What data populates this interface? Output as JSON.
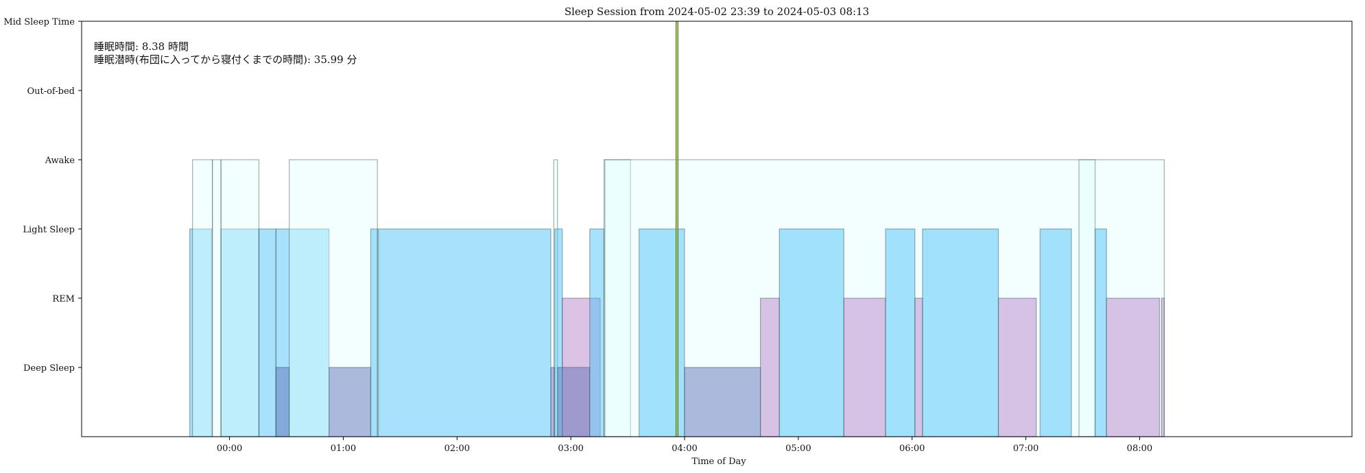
{
  "chart_data": {
    "type": "bar",
    "title": "Sleep Session from 2024-05-02 23:39 to 2024-05-03 08:13",
    "xlabel": "Time of Day",
    "ylabel": "",
    "grid": false,
    "x_unit": "minutes relative to 2024-05-03 00:00",
    "xlim": [
      -78,
      592
    ],
    "x_ticks": [
      {
        "value": 0,
        "label": "00:00"
      },
      {
        "value": 60,
        "label": "01:00"
      },
      {
        "value": 120,
        "label": "02:00"
      },
      {
        "value": 180,
        "label": "03:00"
      },
      {
        "value": 240,
        "label": "04:00"
      },
      {
        "value": 300,
        "label": "05:00"
      },
      {
        "value": 360,
        "label": "06:00"
      },
      {
        "value": 420,
        "label": "07:00"
      },
      {
        "value": 480,
        "label": "08:00"
      }
    ],
    "y_levels": [
      "",
      "Deep Sleep",
      "REM",
      "Light Sleep",
      "Awake",
      "Out-of-bed",
      "Mid Sleep Time"
    ],
    "annotations": [
      "睡眠時間: 8.38 時間",
      "睡眠潜時(布団に入ってから寝付くまでの時間): 35.99 分"
    ],
    "mid_sleep_line_x": 236,
    "colors": {
      "Deep Sleep": "#5c6fb5",
      "REM": "#b57fc9",
      "Light Sleep": "#4fc3f7",
      "Awake": "#e0ffff",
      "Edge": "#2f4f4f",
      "MidLine": "#9acd32"
    },
    "segments": [
      {
        "stage": "Light Sleep",
        "start": -21,
        "end": -9.5
      },
      {
        "stage": "Awake",
        "start": -19.5,
        "end": -9
      },
      {
        "stage": "Awake",
        "start": -9,
        "end": -4.5
      },
      {
        "stage": "Light Sleep",
        "start": -4.5,
        "end": 15.5
      },
      {
        "stage": "Awake",
        "start": -4.5,
        "end": 15.5
      },
      {
        "stage": "Light Sleep",
        "start": 15.5,
        "end": 24.5
      },
      {
        "stage": "Light Sleep",
        "start": 24.5,
        "end": 52.5
      },
      {
        "stage": "Deep Sleep",
        "start": 24.5,
        "end": 31.5
      },
      {
        "stage": "Awake",
        "start": 31.5,
        "end": 78
      },
      {
        "stage": "Deep Sleep",
        "start": 52.5,
        "end": 74.5
      },
      {
        "stage": "Light Sleep",
        "start": 74.5,
        "end": 78
      },
      {
        "stage": "Light Sleep",
        "start": 78.5,
        "end": 169.5
      },
      {
        "stage": "Awake",
        "start": 171,
        "end": 173
      },
      {
        "stage": "Deep Sleep",
        "start": 169.5,
        "end": 171.5
      },
      {
        "stage": "Light Sleep",
        "start": 171.5,
        "end": 175.5
      },
      {
        "stage": "REM",
        "start": 175.5,
        "end": 195.5
      },
      {
        "stage": "Deep Sleep",
        "start": 173,
        "end": 190
      },
      {
        "stage": "Light Sleep",
        "start": 190,
        "end": 197.5
      },
      {
        "stage": "Awake",
        "start": 197.5,
        "end": 211.5
      },
      {
        "stage": "Awake",
        "start": 198,
        "end": 493
      },
      {
        "stage": "Light Sleep",
        "start": 216,
        "end": 240
      },
      {
        "stage": "Deep Sleep",
        "start": 240,
        "end": 280
      },
      {
        "stage": "REM",
        "start": 280,
        "end": 290
      },
      {
        "stage": "Light Sleep",
        "start": 290,
        "end": 324
      },
      {
        "stage": "REM",
        "start": 324,
        "end": 346
      },
      {
        "stage": "Light Sleep",
        "start": 346,
        "end": 361.5
      },
      {
        "stage": "REM",
        "start": 361.5,
        "end": 365.5
      },
      {
        "stage": "Light Sleep",
        "start": 365.5,
        "end": 405.5
      },
      {
        "stage": "REM",
        "start": 405.5,
        "end": 425.5
      },
      {
        "stage": "Light Sleep",
        "start": 427.5,
        "end": 444
      },
      {
        "stage": "Awake",
        "start": 448,
        "end": 456.5
      },
      {
        "stage": "Light Sleep",
        "start": 456.5,
        "end": 462.5
      },
      {
        "stage": "REM",
        "start": 462.5,
        "end": 490.5
      },
      {
        "stage": "REM",
        "start": 491.5,
        "end": 493
      }
    ]
  }
}
